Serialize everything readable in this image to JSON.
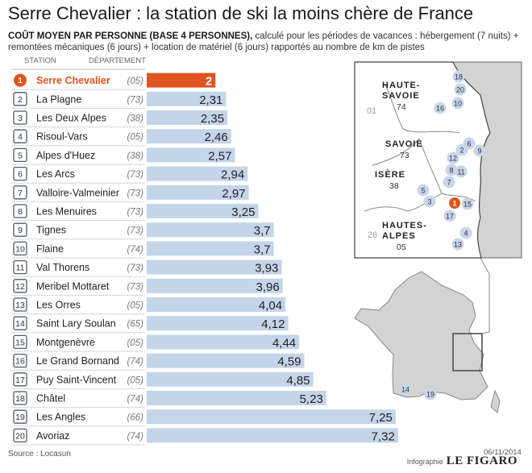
{
  "title": "Serre Chevalier : la station de ski la moins chère de France",
  "subtitle_bold": "COÛT MOYEN PAR PERSONNE (BASE 4 PERSONNES),",
  "subtitle_rest": " calculé pour les périodes de vacances : hébergement (7 nuits) + remontées mécaniques (6 jours) + location de matériel (6 jours) rapportés au nombre de km de pistes",
  "col_station": "STATION",
  "col_departement": "DÉPARTEMENT",
  "colors": {
    "highlight": "#e0541f",
    "bar": "#c4d4e9",
    "badge": "#4a5a75",
    "map_land": "#ffffff",
    "map_border": "#444444",
    "map_sea": "#d3d3d3"
  },
  "chart_data": {
    "type": "bar",
    "orientation": "horizontal",
    "title": "Serre Chevalier : la station de ski la moins chère de France",
    "xlim": [
      0,
      7.5
    ],
    "stations": [
      {
        "rank": "1",
        "name": "Serre Chevalier",
        "dept": "(05)",
        "value": 2,
        "label": "2"
      },
      {
        "rank": "2",
        "name": "La Plagne",
        "dept": "(73)",
        "value": 2.31,
        "label": "2,31"
      },
      {
        "rank": "3",
        "name": "Les Deux Alpes",
        "dept": "(38)",
        "value": 2.35,
        "label": "2,35"
      },
      {
        "rank": "4",
        "name": "Risoul-Vars",
        "dept": "(05)",
        "value": 2.46,
        "label": "2,46"
      },
      {
        "rank": "5",
        "name": "Alpes d'Huez",
        "dept": "(38)",
        "value": 2.57,
        "label": "2,57"
      },
      {
        "rank": "6",
        "name": "Les Arcs",
        "dept": "(73)",
        "value": 2.94,
        "label": "2,94"
      },
      {
        "rank": "7",
        "name": "Valloire-Valmeinier",
        "dept": "(73)",
        "value": 2.97,
        "label": "2,97"
      },
      {
        "rank": "8",
        "name": "Les Menuires",
        "dept": "(73)",
        "value": 3.25,
        "label": "3,25"
      },
      {
        "rank": "9",
        "name": "Tignes",
        "dept": "(73)",
        "value": 3.7,
        "label": "3,7"
      },
      {
        "rank": "10",
        "name": "Flaine",
        "dept": "(74)",
        "value": 3.7,
        "label": "3,7"
      },
      {
        "rank": "11",
        "name": "Val Thorens",
        "dept": "(73)",
        "value": 3.93,
        "label": "3,93"
      },
      {
        "rank": "12",
        "name": "Meribel Mottaret",
        "dept": "(73)",
        "value": 3.96,
        "label": "3,96"
      },
      {
        "rank": "13",
        "name": "Les Orres",
        "dept": "(05)",
        "value": 4.04,
        "label": "4,04"
      },
      {
        "rank": "14",
        "name": "Saint Lary Soulan",
        "dept": "(65)",
        "value": 4.12,
        "label": "4,12"
      },
      {
        "rank": "15",
        "name": "Montgenèvre",
        "dept": "(05)",
        "value": 4.44,
        "label": "4,44"
      },
      {
        "rank": "16",
        "name": "Le Grand Bornand",
        "dept": "(74)",
        "value": 4.59,
        "label": "4,59"
      },
      {
        "rank": "17",
        "name": "Puy Saint-Vincent",
        "dept": "(05)",
        "value": 4.85,
        "label": "4,85"
      },
      {
        "rank": "18",
        "name": "Châtel",
        "dept": "(74)",
        "value": 5.23,
        "label": "5,23"
      },
      {
        "rank": "19",
        "name": "Les Angles",
        "dept": "(66)",
        "value": 7.25,
        "label": "7,25"
      },
      {
        "rank": "20",
        "name": "Avoriaz",
        "dept": "(74)",
        "value": 7.32,
        "label": "7,32"
      }
    ]
  },
  "map": {
    "regions": [
      {
        "name": "HAUTE-",
        "line2": "SAVOIE",
        "code": "74"
      },
      {
        "name": "SAVOIE",
        "line2": "",
        "code": "73"
      },
      {
        "name": "ISÈRE",
        "line2": "",
        "code": "38"
      },
      {
        "name": "HAUTES-",
        "line2": "ALPES",
        "code": "05"
      }
    ],
    "other_codes": [
      "01",
      "26"
    ],
    "markers": [
      "18",
      "20",
      "10",
      "16",
      "6",
      "9",
      "2",
      "12",
      "8",
      "11",
      "7",
      "5",
      "3",
      "1",
      "15",
      "17",
      "4",
      "13"
    ],
    "france_markers": [
      "14",
      "19"
    ]
  },
  "footer": {
    "source": "Source : Locasun",
    "date": "06/11/2014",
    "credit": "Infographie",
    "brand": "LE FIGARO"
  }
}
